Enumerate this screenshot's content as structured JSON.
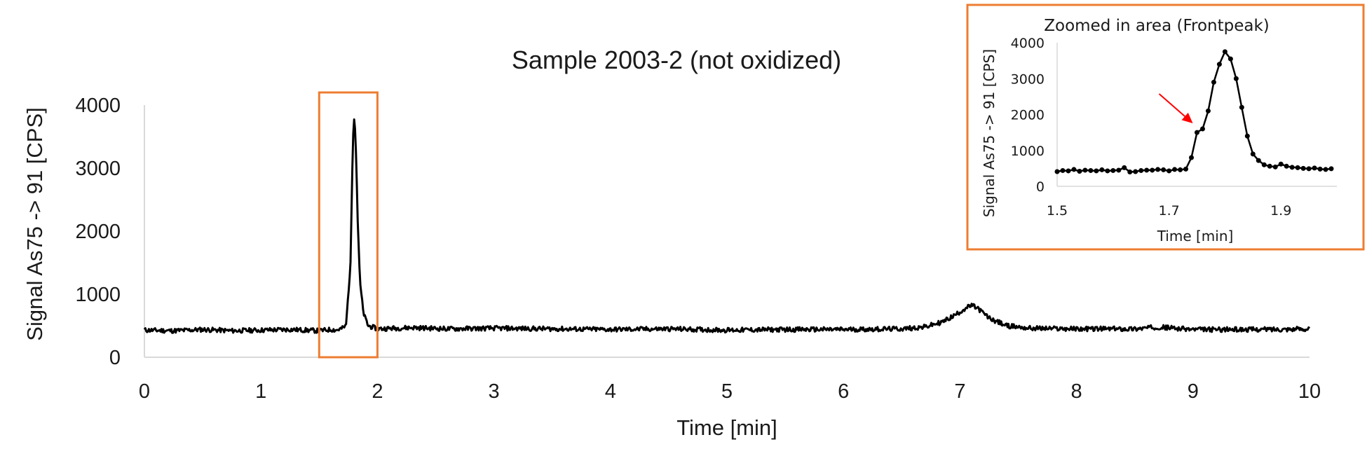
{
  "chart_data": [
    {
      "type": "line",
      "title": "Sample 2003-2 (not oxidized)",
      "xlabel": "Time [min]",
      "ylabel": "Signal As75 -> 91 [CPS]",
      "xlim": [
        0,
        10
      ],
      "ylim": [
        0,
        4000
      ],
      "x_ticks": [
        0,
        1,
        2,
        3,
        4,
        5,
        6,
        7,
        8,
        9,
        10
      ],
      "y_ticks": [
        0,
        1000,
        2000,
        3000,
        4000
      ],
      "x_tick_labels": [
        "0",
        "1",
        "2",
        "3",
        "4",
        "5",
        "6",
        "7",
        "8",
        "9",
        "10"
      ],
      "y_tick_labels": [
        "0",
        "1000",
        "2000",
        "3000",
        "4000"
      ],
      "grid": false,
      "legend": "none",
      "line_color": "#000000",
      "highlight_box": {
        "x_range": [
          1.5,
          2.0
        ],
        "y_range": [
          0,
          4200
        ],
        "color": "#ED7D31"
      },
      "series": [
        {
          "x": [
            0,
            0.25,
            0.5,
            0.75,
            1.0,
            1.25,
            1.5,
            1.6,
            1.65,
            1.7,
            1.73,
            1.75,
            1.77,
            1.78,
            1.79,
            1.8,
            1.81,
            1.82,
            1.83,
            1.85,
            1.88,
            1.92,
            2.0,
            2.3,
            2.6,
            3.0,
            3.5,
            4.0,
            4.5,
            5.0,
            5.5,
            6.0,
            6.5,
            6.7,
            6.85,
            6.95,
            7.05,
            7.1,
            7.15,
            7.25,
            7.4,
            7.6,
            8.0,
            8.5,
            8.7,
            9.0,
            9.5,
            10.0
          ],
          "y": [
            430,
            420,
            440,
            420,
            430,
            440,
            420,
            440,
            430,
            460,
            500,
            1000,
            1500,
            2600,
            3500,
            3800,
            3600,
            3000,
            2200,
            1200,
            700,
            500,
            450,
            470,
            450,
            460,
            450,
            440,
            450,
            430,
            440,
            440,
            450,
            480,
            560,
            660,
            780,
            820,
            780,
            620,
            500,
            460,
            450,
            450,
            480,
            440,
            440,
            450
          ]
        }
      ]
    },
    {
      "type": "line",
      "title": "Zoomed in area (Frontpeak)",
      "xlabel": "Time [min]",
      "ylabel": "Signal As75 -> 91 [CPS]",
      "xlim": [
        1.5,
        2.0
      ],
      "ylim": [
        0,
        4000
      ],
      "x_ticks": [
        1.5,
        1.7,
        1.9
      ],
      "y_ticks": [
        0,
        1000,
        2000,
        3000,
        4000
      ],
      "x_tick_labels": [
        "1.5",
        "1.7",
        "1.9"
      ],
      "y_tick_labels": [
        "0",
        "1000",
        "2000",
        "3000",
        "4000"
      ],
      "markers": true,
      "grid": false,
      "legend": "none",
      "line_color": "#000000",
      "arrow_color": "#FF0000",
      "frame_color": "#ED7D31",
      "arrow_target": [
        1.75,
        1600
      ],
      "series": [
        {
          "x": [
            1.5,
            1.51,
            1.52,
            1.53,
            1.54,
            1.55,
            1.56,
            1.57,
            1.58,
            1.59,
            1.6,
            1.61,
            1.62,
            1.63,
            1.64,
            1.65,
            1.66,
            1.67,
            1.68,
            1.69,
            1.7,
            1.71,
            1.72,
            1.73,
            1.74,
            1.75,
            1.76,
            1.77,
            1.78,
            1.79,
            1.8,
            1.81,
            1.82,
            1.83,
            1.84,
            1.85,
            1.86,
            1.87,
            1.88,
            1.89,
            1.9,
            1.91,
            1.92,
            1.93,
            1.94,
            1.95,
            1.96,
            1.97,
            1.98,
            1.99
          ],
          "y": [
            410,
            440,
            430,
            470,
            420,
            450,
            440,
            430,
            460,
            430,
            440,
            450,
            520,
            400,
            410,
            440,
            450,
            450,
            470,
            460,
            430,
            470,
            460,
            480,
            800,
            1500,
            1600,
            2100,
            2900,
            3400,
            3750,
            3550,
            3000,
            2200,
            1400,
            900,
            720,
            600,
            560,
            540,
            620,
            560,
            530,
            520,
            500,
            490,
            510,
            480,
            470,
            490
          ]
        }
      ]
    }
  ]
}
